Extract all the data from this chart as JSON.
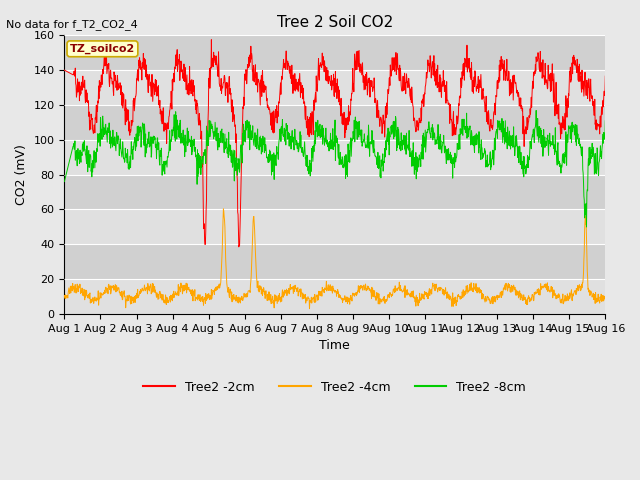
{
  "title": "Tree 2 Soil CO2",
  "no_data_text": "No data for f_T2_CO2_4",
  "ylabel": "CO2 (mV)",
  "xlabel": "Time",
  "annotation": "TZ_soilco2",
  "ylim": [
    0,
    160
  ],
  "yticks": [
    0,
    20,
    40,
    60,
    80,
    100,
    120,
    140,
    160
  ],
  "xtick_labels": [
    "Aug 1",
    "Aug 2",
    "Aug 3",
    "Aug 4",
    "Aug 5",
    "Aug 6",
    "Aug 7",
    "Aug 8",
    "Aug 9",
    "Aug 10",
    "Aug 11",
    "Aug 12",
    "Aug 13",
    "Aug 14",
    "Aug 15",
    "Aug 16"
  ],
  "color_2cm": "#FF0000",
  "color_4cm": "#FFA500",
  "color_8cm": "#00CC00",
  "bg_color": "#DCDCDC",
  "band_color_dark": "#D0D0D0",
  "band_color_light": "#E0E0E0",
  "fig_bg": "#E8E8E8",
  "legend_labels": [
    "Tree2 -2cm",
    "Tree2 -4cm",
    "Tree2 -8cm"
  ],
  "title_fontsize": 11,
  "axis_label_fontsize": 9,
  "tick_fontsize": 8,
  "annot_fontsize": 8,
  "no_data_fontsize": 8,
  "legend_fontsize": 9
}
